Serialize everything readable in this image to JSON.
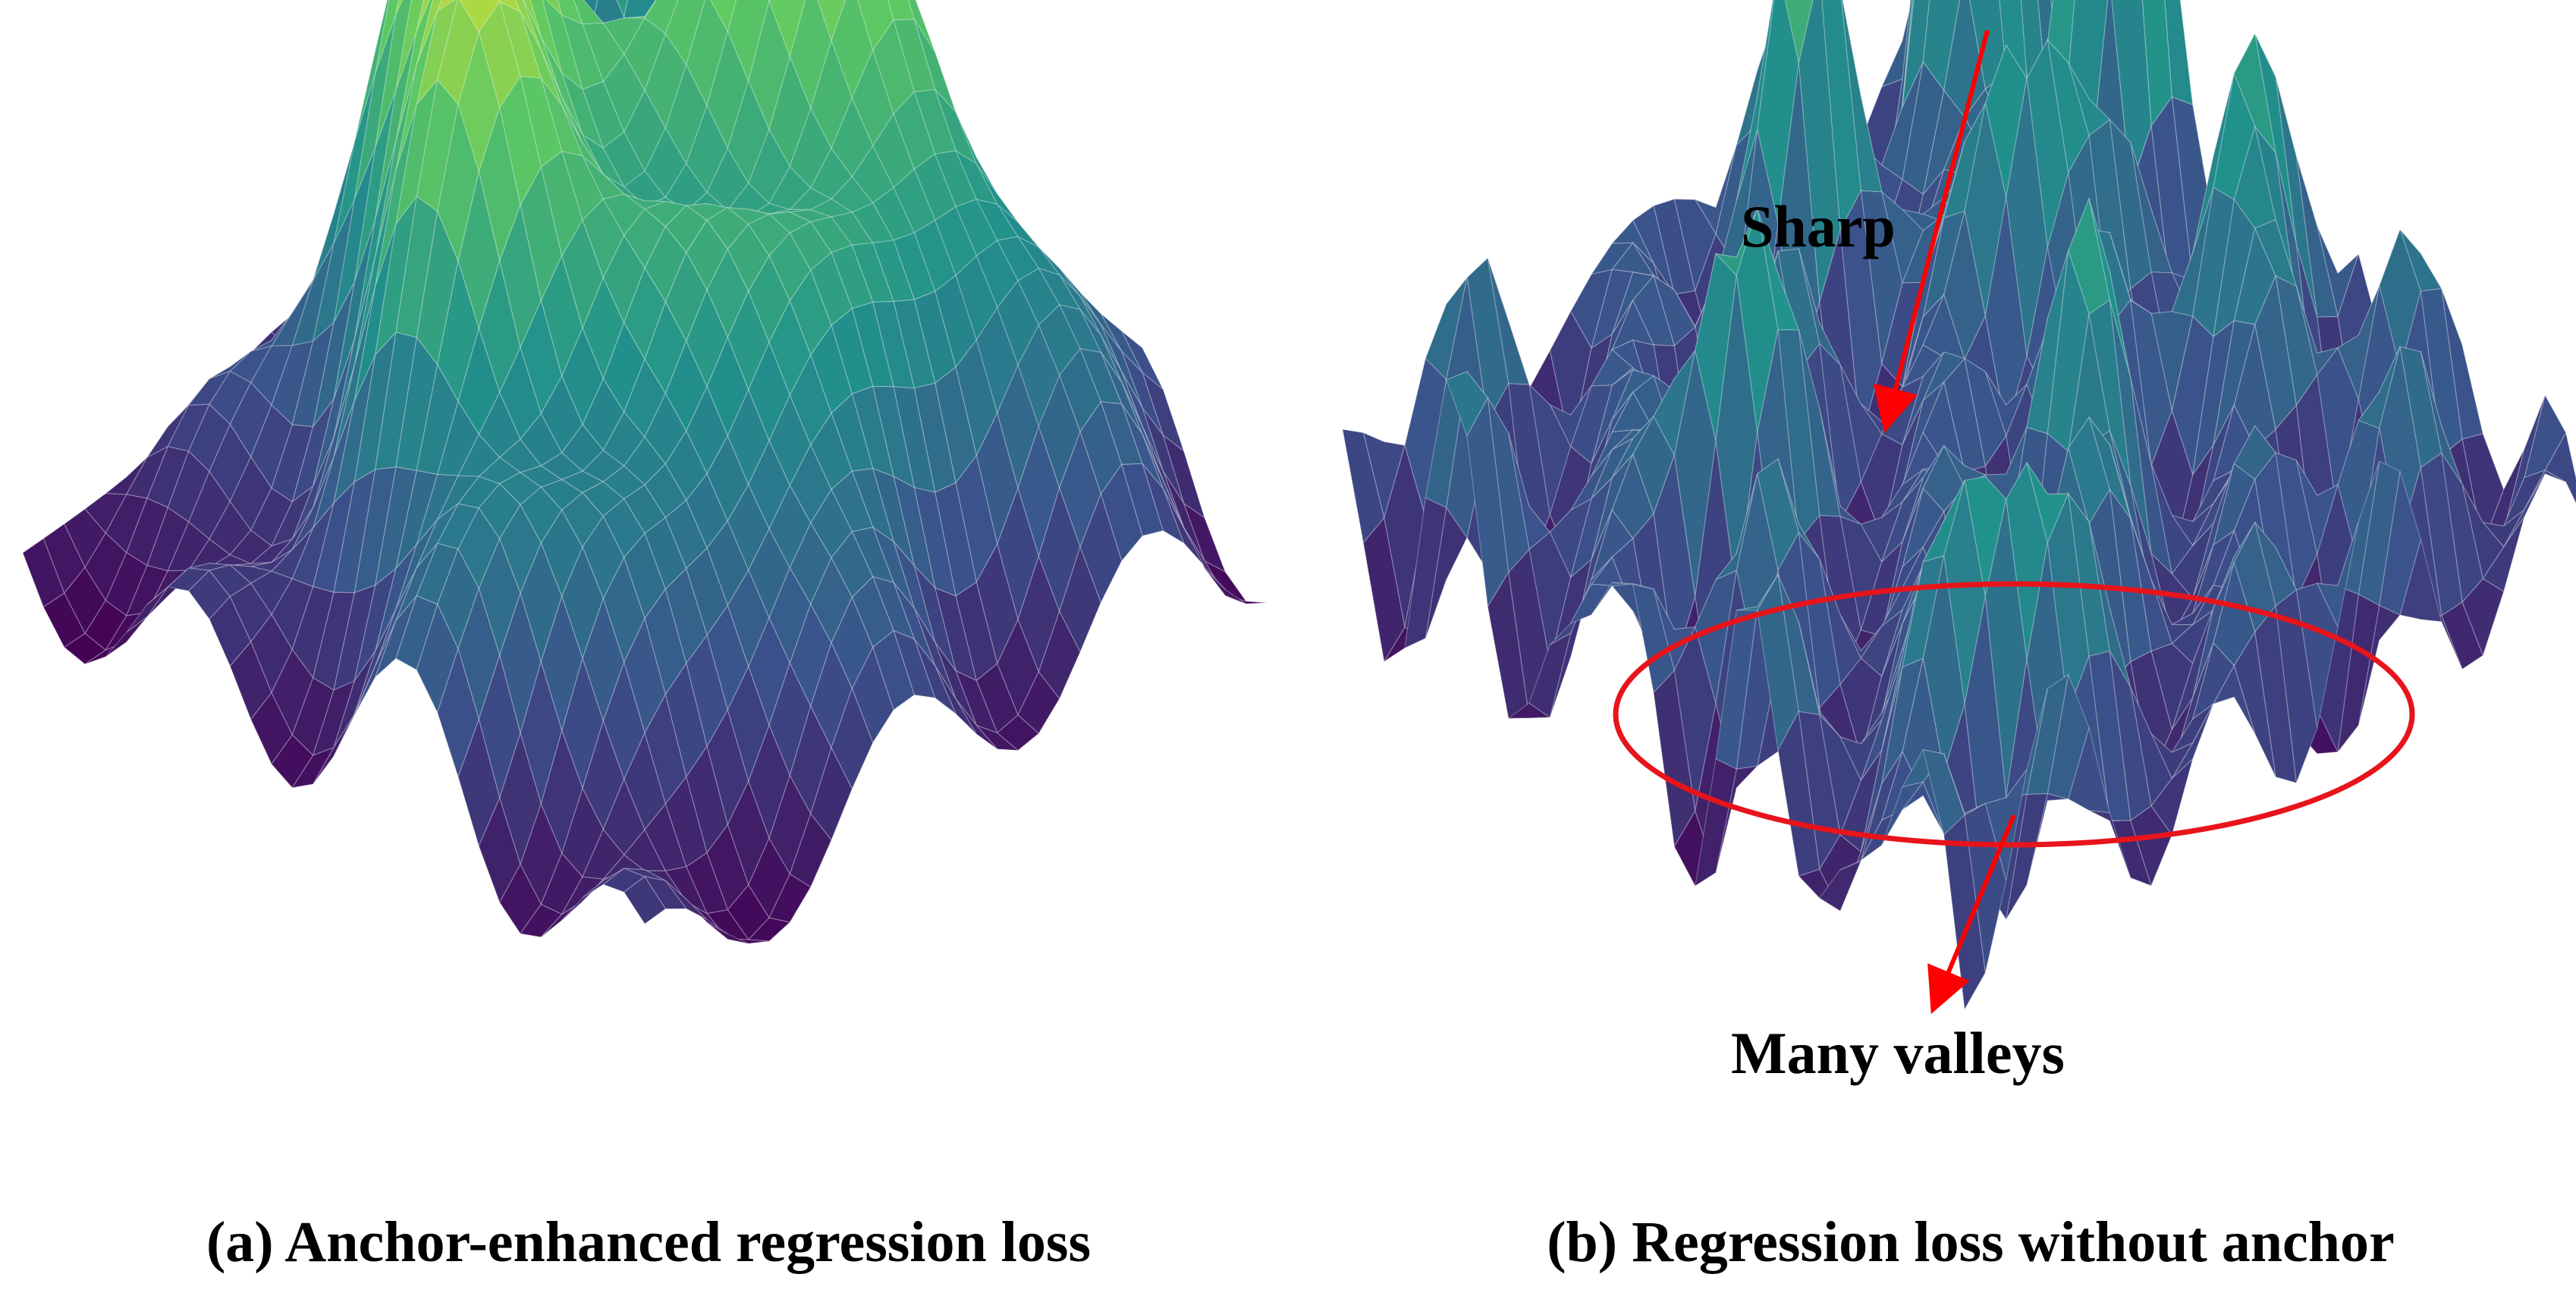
{
  "panels": [
    {
      "id": "a",
      "caption": "(a) Anchor-enhanced regression loss",
      "annotations": []
    },
    {
      "id": "b",
      "caption": "(b) Regression loss without anchor",
      "annotations": [
        {
          "text": "Sharp"
        },
        {
          "text": "Many valleys"
        }
      ]
    }
  ],
  "colors": {
    "colormap": [
      "#440154",
      "#3b528b",
      "#21918c",
      "#5ec962",
      "#fde725"
    ],
    "annotation": "#ff0000",
    "text": "#000000"
  }
}
